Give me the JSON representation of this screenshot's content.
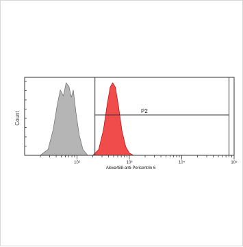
{
  "chart_data": {
    "type": "area",
    "xlabel": "Alexa488-anti-Pericentrin 6",
    "ylabel": "Count",
    "x_scale": "log",
    "xlim": [
      10,
      100000
    ],
    "x_ticks": [
      {
        "value": 100,
        "label": "10²"
      },
      {
        "value": 1000,
        "label": "10³"
      },
      {
        "value": 10000,
        "label": "10⁴"
      },
      {
        "value": 100000,
        "label": "10⁵"
      }
    ],
    "ylim": [
      0,
      1
    ],
    "series": [
      {
        "name": "",
        "color": "#a8a8a8",
        "points": [
          [
            20,
            0
          ],
          [
            28,
            0.08
          ],
          [
            35,
            0.35
          ],
          [
            42,
            0.7
          ],
          [
            48,
            0.9
          ],
          [
            55,
            0.82
          ],
          [
            62,
            1.0
          ],
          [
            70,
            0.95
          ],
          [
            78,
            0.8
          ],
          [
            85,
            0.9
          ],
          [
            95,
            0.6
          ],
          [
            110,
            0.28
          ],
          [
            130,
            0.08
          ],
          [
            160,
            0
          ]
        ]
      },
      {
        "name": "",
        "color": "#f03838",
        "points": [
          [
            200,
            0
          ],
          [
            260,
            0.08
          ],
          [
            320,
            0.35
          ],
          [
            380,
            0.72
          ],
          [
            430,
            0.94
          ],
          [
            480,
            1.0
          ],
          [
            540,
            0.94
          ],
          [
            620,
            0.68
          ],
          [
            720,
            0.34
          ],
          [
            850,
            0.12
          ],
          [
            1000,
            0.03
          ],
          [
            1200,
            0
          ]
        ]
      }
    ],
    "gates": [
      {
        "label": "",
        "x_range": [
          220,
          80000
        ]
      },
      {
        "label": "P2",
        "x_range": [
          220,
          80000
        ]
      }
    ],
    "grid": false
  }
}
